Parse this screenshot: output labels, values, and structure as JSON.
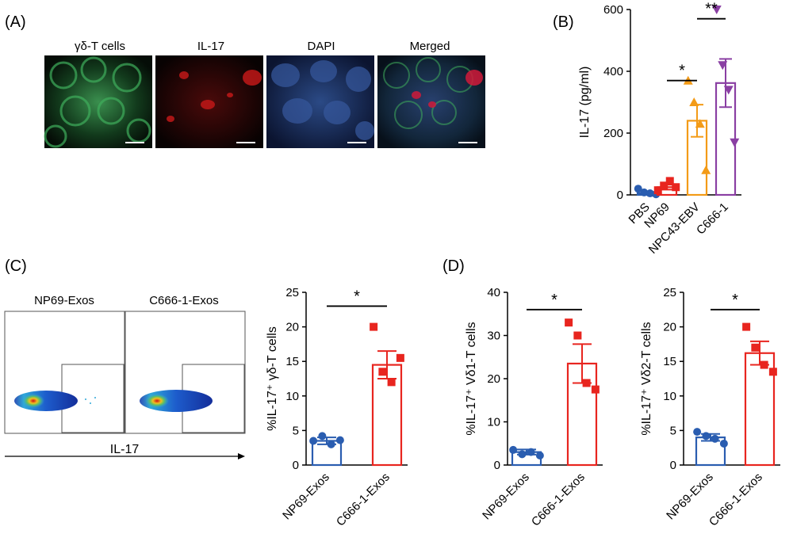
{
  "panels": {
    "A": {
      "label": "(A)",
      "image_titles": [
        "γδ-T cells",
        "IL-17",
        "DAPI",
        "Merged"
      ]
    },
    "B": {
      "label": "(B)"
    },
    "C": {
      "label": "(C)",
      "flow_titles": [
        "NP69-Exos",
        "C666-1-Exos"
      ],
      "flow_xlabel": "IL-17"
    },
    "D": {
      "label": "(D)"
    }
  },
  "colors": {
    "blue": "#2a5db0",
    "red": "#e8251f",
    "orange": "#f39b17",
    "purple": "#8a3fa3"
  },
  "chart_data": [
    {
      "id": "B",
      "type": "bar",
      "title": "",
      "xlabel": "",
      "ylabel": "IL-17 (pg/ml)",
      "ylim": [
        0,
        600
      ],
      "yticks": [
        0,
        200,
        400,
        600
      ],
      "categories": [
        "PBS",
        "NP69",
        "NPC43-EBV",
        "C666-1"
      ],
      "means": [
        5,
        25,
        240,
        362
      ],
      "sem": [
        5,
        8,
        52,
        78
      ],
      "points": [
        [
          20,
          8,
          5,
          2
        ],
        [
          15,
          30,
          45,
          25
        ],
        [
          370,
          300,
          230,
          80
        ],
        [
          600,
          420,
          340,
          170
        ]
      ],
      "colors": [
        "#2a5db0",
        "#e8251f",
        "#f39b17",
        "#8a3fa3"
      ],
      "markers": [
        "circle",
        "square",
        "triangle",
        "triangle-down"
      ],
      "significance": [
        {
          "from": 1,
          "to": 2,
          "label": "*",
          "y": 370
        },
        {
          "from": 2,
          "to": 3,
          "label": "**",
          "y": 570
        }
      ]
    },
    {
      "id": "C",
      "type": "bar",
      "title": "",
      "xlabel": "",
      "ylabel": "%IL-17⁺ γδ-T cells",
      "ylim": [
        0,
        25
      ],
      "yticks": [
        0,
        5,
        10,
        15,
        20,
        25
      ],
      "categories": [
        "NP69-Exos",
        "C666-1-Exos"
      ],
      "means": [
        3.5,
        14.5
      ],
      "sem": [
        0.5,
        2.0
      ],
      "points": [
        [
          3.5,
          4.2,
          3.0,
          3.6
        ],
        [
          20.0,
          13.5,
          12.0,
          15.5
        ]
      ],
      "colors": [
        "#2a5db0",
        "#e8251f"
      ],
      "markers": [
        "circle",
        "square"
      ],
      "significance": [
        {
          "from": 0,
          "to": 1,
          "label": "*",
          "y": 23
        }
      ]
    },
    {
      "id": "D1",
      "type": "bar",
      "title": "",
      "xlabel": "",
      "ylabel": "%IL-17⁺ Vδ1-T cells",
      "ylim": [
        0,
        40
      ],
      "yticks": [
        0,
        10,
        20,
        30,
        40
      ],
      "categories": [
        "NP69-Exos",
        "C666-1-Exos"
      ],
      "means": [
        3.0,
        23.5
      ],
      "sem": [
        0.6,
        4.5
      ],
      "points": [
        [
          3.5,
          2.5,
          3.0,
          2.2
        ],
        [
          33.0,
          30.0,
          19.0,
          17.5
        ]
      ],
      "colors": [
        "#2a5db0",
        "#e8251f"
      ],
      "markers": [
        "circle",
        "square"
      ],
      "significance": [
        {
          "from": 0,
          "to": 1,
          "label": "*",
          "y": 36
        }
      ]
    },
    {
      "id": "D2",
      "type": "bar",
      "title": "",
      "xlabel": "",
      "ylabel": "%IL-17⁺ Vδ2-T cells",
      "ylim": [
        0,
        25
      ],
      "yticks": [
        0,
        5,
        10,
        15,
        20,
        25
      ],
      "categories": [
        "NP69-Exos",
        "C666-1-Exos"
      ],
      "means": [
        4.0,
        16.2
      ],
      "sem": [
        0.5,
        1.7
      ],
      "points": [
        [
          4.8,
          4.2,
          3.8,
          3.1
        ],
        [
          20.0,
          17.0,
          14.5,
          13.5
        ]
      ],
      "colors": [
        "#2a5db0",
        "#e8251f"
      ],
      "markers": [
        "circle",
        "square"
      ],
      "significance": [
        {
          "from": 0,
          "to": 1,
          "label": "*",
          "y": 22.5
        }
      ]
    }
  ]
}
